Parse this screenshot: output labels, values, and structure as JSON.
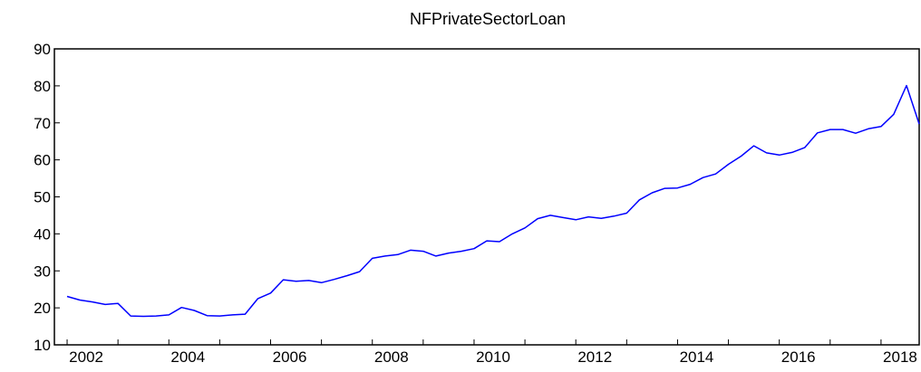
{
  "chart_data": {
    "type": "line",
    "title": "NFPrivateSectorLoan",
    "xlabel": "",
    "ylabel": "",
    "ylim": [
      10,
      90
    ],
    "xlim": [
      2001.75,
      2018.75
    ],
    "y_ticks": [
      "10",
      "20",
      "30",
      "40",
      "50",
      "60",
      "70",
      "80",
      "90"
    ],
    "x_ticks": [
      "2002",
      "2004",
      "2006",
      "2008",
      "2010",
      "2012",
      "2014",
      "2016",
      "2018"
    ],
    "grid": false,
    "line_color": "#0000FF",
    "series": [
      {
        "x": [
          2002.0,
          2002.25,
          2002.5,
          2002.75,
          2003.0,
          2003.25,
          2003.5,
          2003.75,
          2004.0,
          2004.25,
          2004.5,
          2004.75,
          2005.0,
          2005.25,
          2005.5,
          2005.75,
          2006.0,
          2006.25,
          2006.5,
          2006.75,
          2007.0,
          2007.25,
          2007.5,
          2007.75,
          2008.0,
          2008.25,
          2008.5,
          2008.75,
          2009.0,
          2009.25,
          2009.5,
          2009.75,
          2010.0,
          2010.25,
          2010.5,
          2010.75,
          2011.0,
          2011.25,
          2011.5,
          2011.75,
          2012.0,
          2012.25,
          2012.5,
          2012.75,
          2013.0,
          2013.25,
          2013.5,
          2013.75,
          2014.0,
          2014.25,
          2014.5,
          2014.75,
          2015.0,
          2015.25,
          2015.5,
          2015.75,
          2016.0,
          2016.25,
          2016.5,
          2016.75,
          2017.0,
          2017.25,
          2017.5,
          2017.75,
          2018.0,
          2018.25,
          2018.5,
          2018.75
        ],
        "values": [
          23.1,
          22.1,
          21.6,
          20.9,
          21.2,
          17.8,
          17.7,
          17.8,
          18.1,
          20.1,
          19.3,
          17.9,
          17.8,
          18.1,
          18.3,
          22.5,
          24.0,
          27.6,
          27.2,
          27.4,
          26.8,
          27.7,
          28.7,
          29.8,
          33.4,
          34.0,
          34.4,
          35.6,
          35.3,
          34.0,
          34.8,
          35.3,
          36.0,
          38.1,
          37.9,
          40.0,
          41.6,
          44.1,
          45.0,
          44.4,
          43.8,
          44.6,
          44.2,
          44.8,
          45.6,
          49.2,
          51.1,
          52.3,
          52.4,
          53.4,
          55.2,
          56.2,
          58.8,
          61.0,
          63.8,
          61.9,
          61.3,
          62.0,
          63.3,
          67.3,
          68.2,
          68.2,
          67.2,
          68.4,
          69.0,
          72.3,
          80.1,
          69.7
        ]
      }
    ]
  }
}
